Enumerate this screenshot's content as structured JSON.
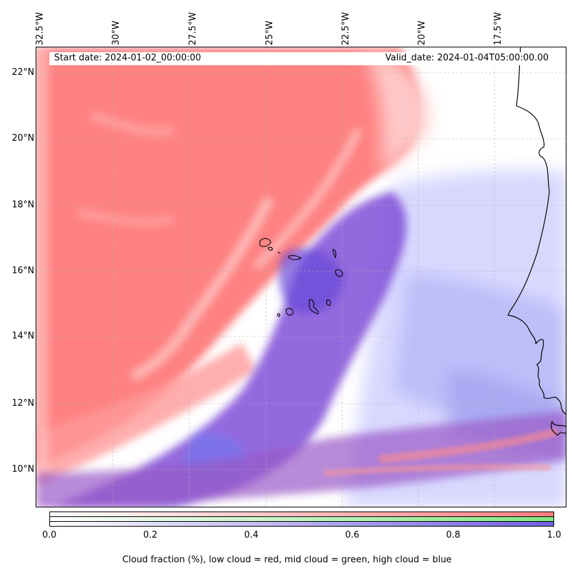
{
  "map": {
    "start_date": "Start date: 2024-01-02_00:00:00",
    "valid_date": "Valid_date: 2024-01-04T05:00:00.00",
    "longitude_labels": [
      "32.5°W",
      "30°W",
      "27.5°W",
      "25°W",
      "22.5°W",
      "20°W",
      "17.5°W"
    ],
    "latitude_labels": [
      "22°N",
      "20°N",
      "18°N",
      "16°N",
      "14°N",
      "12°N",
      "10°N"
    ],
    "colors": {
      "low_cloud": "#ff7f7f",
      "mid_cloud": "#80e880",
      "high_cloud": "#7060e0",
      "coastline": "#000000",
      "gridline": "#b0b0b0"
    }
  },
  "colorbar": {
    "ticks": [
      "0.0",
      "0.2",
      "0.4",
      "0.6",
      "0.8",
      "1.0"
    ],
    "label": "Cloud fraction (%), low cloud = red, mid cloud = green, high cloud = blue"
  }
}
